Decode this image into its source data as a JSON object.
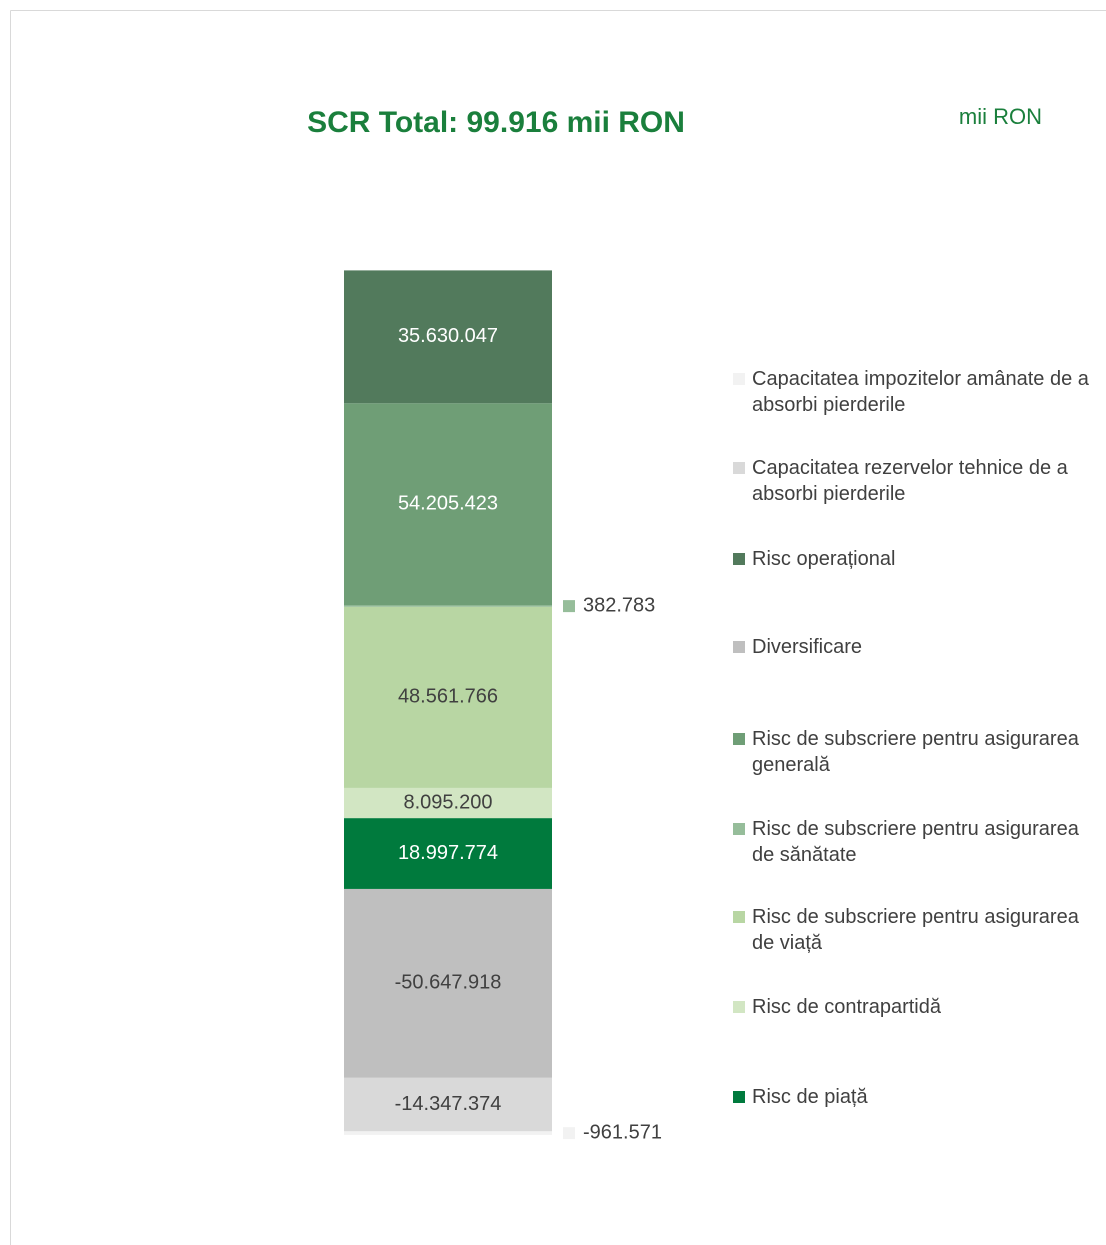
{
  "chart_data": {
    "type": "stacked_bar",
    "title": "SCR Total: 99.916 mii RON",
    "unit_label": "mii RON",
    "ylim": [
      -70000000,
      170000000
    ],
    "series": [
      {
        "name": "Capacitatea impozitelor amânate de a absorbi pierderile",
        "color": "#f2f2f2",
        "values": [
          -961571
        ],
        "value_labels": [
          "-961.571"
        ]
      },
      {
        "name": "Capacitatea rezervelor tehnice de a absorbi pierderile",
        "color": "#d9d9d9",
        "values": [
          -14347374
        ],
        "value_labels": [
          "-14.347.374"
        ]
      },
      {
        "name": "Risc operațional",
        "color": "#527a5c",
        "values": [
          35630047
        ],
        "value_labels": [
          "35.630.047"
        ]
      },
      {
        "name": "Diversificare",
        "color": "#bfbfbf",
        "values": [
          -50647918
        ],
        "value_labels": [
          "-50.647.918"
        ]
      },
      {
        "name": "Risc de subscriere pentru asigurarea generală",
        "color": "#6f9e76",
        "values": [
          54205423
        ],
        "value_labels": [
          "54.205.423"
        ]
      },
      {
        "name": "Risc de subscriere pentru asigurarea de sănătate",
        "color": "#96bd9a",
        "values": [
          382783
        ],
        "value_labels": [
          "382.783"
        ]
      },
      {
        "name": "Risc de subscriere pentru asigurarea de viață",
        "color": "#b8d6a3",
        "values": [
          48561766
        ],
        "value_labels": [
          "48.561.766"
        ]
      },
      {
        "name": "Risc de contrapartidă",
        "color": "#d2e6c3",
        "values": [
          8095200
        ],
        "value_labels": [
          "8.095.200"
        ]
      },
      {
        "name": "Risc de piață",
        "color": "#007a3d",
        "values": [
          18997774
        ],
        "value_labels": [
          "18.997.774"
        ]
      }
    ]
  }
}
